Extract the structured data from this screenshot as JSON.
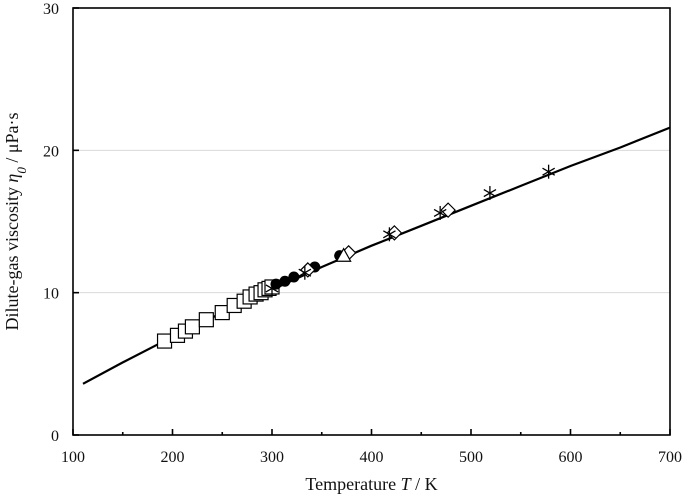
{
  "chart_data": {
    "type": "scatter",
    "xlim": [
      100,
      700
    ],
    "ylim": [
      0,
      30
    ],
    "x_ticks": [
      100,
      200,
      300,
      400,
      500,
      600,
      700
    ],
    "y_ticks": [
      0,
      10,
      20,
      30
    ],
    "x_tick_labels": [
      "100",
      "200",
      "300",
      "400",
      "500",
      "600",
      "700"
    ],
    "y_tick_labels": [
      "0",
      "10",
      "20",
      "30"
    ],
    "grid": "horizontal",
    "xlabel": {
      "prefix": "Temperature  ",
      "symbol": "T",
      "suffix": " / K"
    },
    "ylabel": {
      "prefix": "Dilute-gas viscosity  ",
      "symbol": "η",
      "subscript": "0",
      "suffix": " / μPa·s"
    },
    "correlation_curve": {
      "x": [
        110,
        150,
        200,
        250,
        300,
        350,
        400,
        450,
        500,
        550,
        600,
        650,
        700
      ],
      "y": [
        3.6,
        5.1,
        6.9,
        8.6,
        10.2,
        11.8,
        13.3,
        14.7,
        16.1,
        17.5,
        18.9,
        20.2,
        21.6
      ]
    },
    "series": [
      {
        "marker": "square",
        "x": [
          192,
          205,
          213,
          220,
          234,
          250,
          262,
          272,
          278,
          284,
          289,
          293,
          297,
          300
        ],
        "y": [
          6.6,
          7.0,
          7.3,
          7.6,
          8.1,
          8.6,
          9.1,
          9.4,
          9.7,
          9.9,
          10.0,
          10.2,
          10.3,
          10.4
        ]
      },
      {
        "marker": "filled-circle",
        "x": [
          304,
          313,
          322,
          343,
          368
        ],
        "y": [
          10.6,
          10.8,
          11.1,
          11.8,
          12.6
        ]
      },
      {
        "marker": "diamond",
        "x": [
          336,
          377,
          423,
          477
        ],
        "y": [
          11.6,
          12.8,
          14.2,
          15.8
        ]
      },
      {
        "marker": "triangle",
        "x": [
          372
        ],
        "y": [
          12.6
        ]
      },
      {
        "marker": "star",
        "x": [
          300,
          333,
          418,
          469,
          519,
          578
        ],
        "y": [
          10.3,
          11.4,
          14.1,
          15.6,
          17.0,
          18.5
        ]
      }
    ]
  }
}
